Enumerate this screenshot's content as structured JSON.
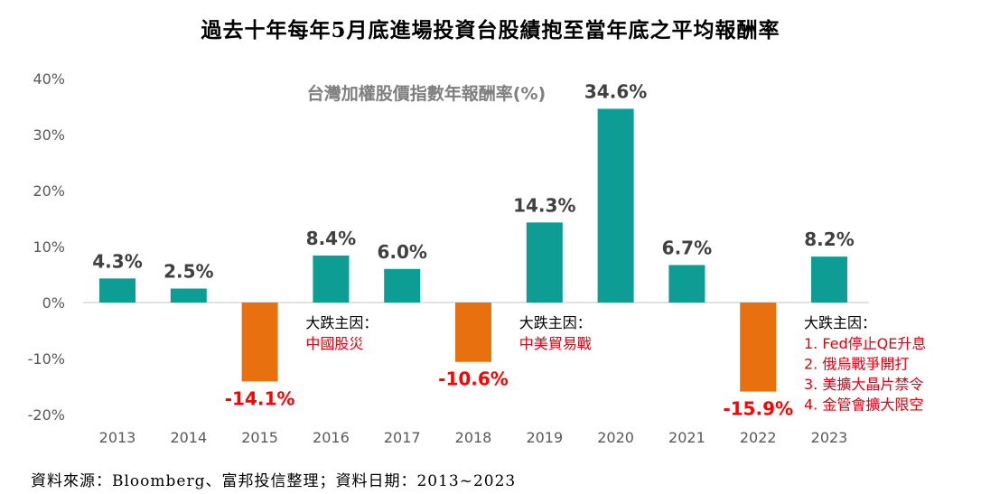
{
  "title": "過去十年每年5月底進場投資台股績抱至當年底之平均報酬率",
  "footer": "資料來源：Bloomberg、富邦投信整理；資料日期：2013~2023",
  "colors": {
    "positive": "#0e9d95",
    "negative": "#e8700e",
    "negative_label": "#ff0000",
    "label": "#404040",
    "axis": "#595959",
    "note": "#e60012"
  },
  "chart_data": {
    "type": "bar",
    "title": "過去十年每年5月底進場投資台股績抱至當年底之平均報酬率",
    "subtitle": "台灣加權股價指數年報酬率(%)",
    "categories": [
      "2013",
      "2014",
      "2015",
      "2016",
      "2017",
      "2018",
      "2019",
      "2020",
      "2021",
      "2022",
      "2023"
    ],
    "values": [
      4.3,
      2.5,
      -14.1,
      8.4,
      6.0,
      -10.6,
      14.3,
      34.6,
      6.7,
      -15.9,
      8.2
    ],
    "data_labels": [
      "4.3%",
      "2.5%",
      "-14.1%",
      "8.4%",
      "6.0%",
      "-10.6%",
      "14.3%",
      "34.6%",
      "6.7%",
      "-15.9%",
      "8.2%"
    ],
    "yticks": [
      40,
      30,
      20,
      10,
      0,
      -10,
      -20
    ],
    "ytick_labels": [
      "40%",
      "30%",
      "20%",
      "10%",
      "0%",
      "-10%",
      "-20%"
    ],
    "ylim": [
      -20,
      40
    ],
    "xlabel": "",
    "ylabel": "",
    "grid": false,
    "annotations": [
      {
        "year": "2016",
        "heading": "大跌主因：",
        "lines": [
          "中國股災"
        ]
      },
      {
        "year": "2019",
        "heading": "大跌主因：",
        "lines": [
          "中美貿易戰"
        ]
      },
      {
        "year": "2023",
        "heading": "大跌主因：",
        "lines": [
          "1.  Fed停止QE升息",
          "2.  俄烏戰爭開打",
          "3.  美擴大晶片禁令",
          "4.  金管會擴大限空"
        ]
      }
    ]
  }
}
